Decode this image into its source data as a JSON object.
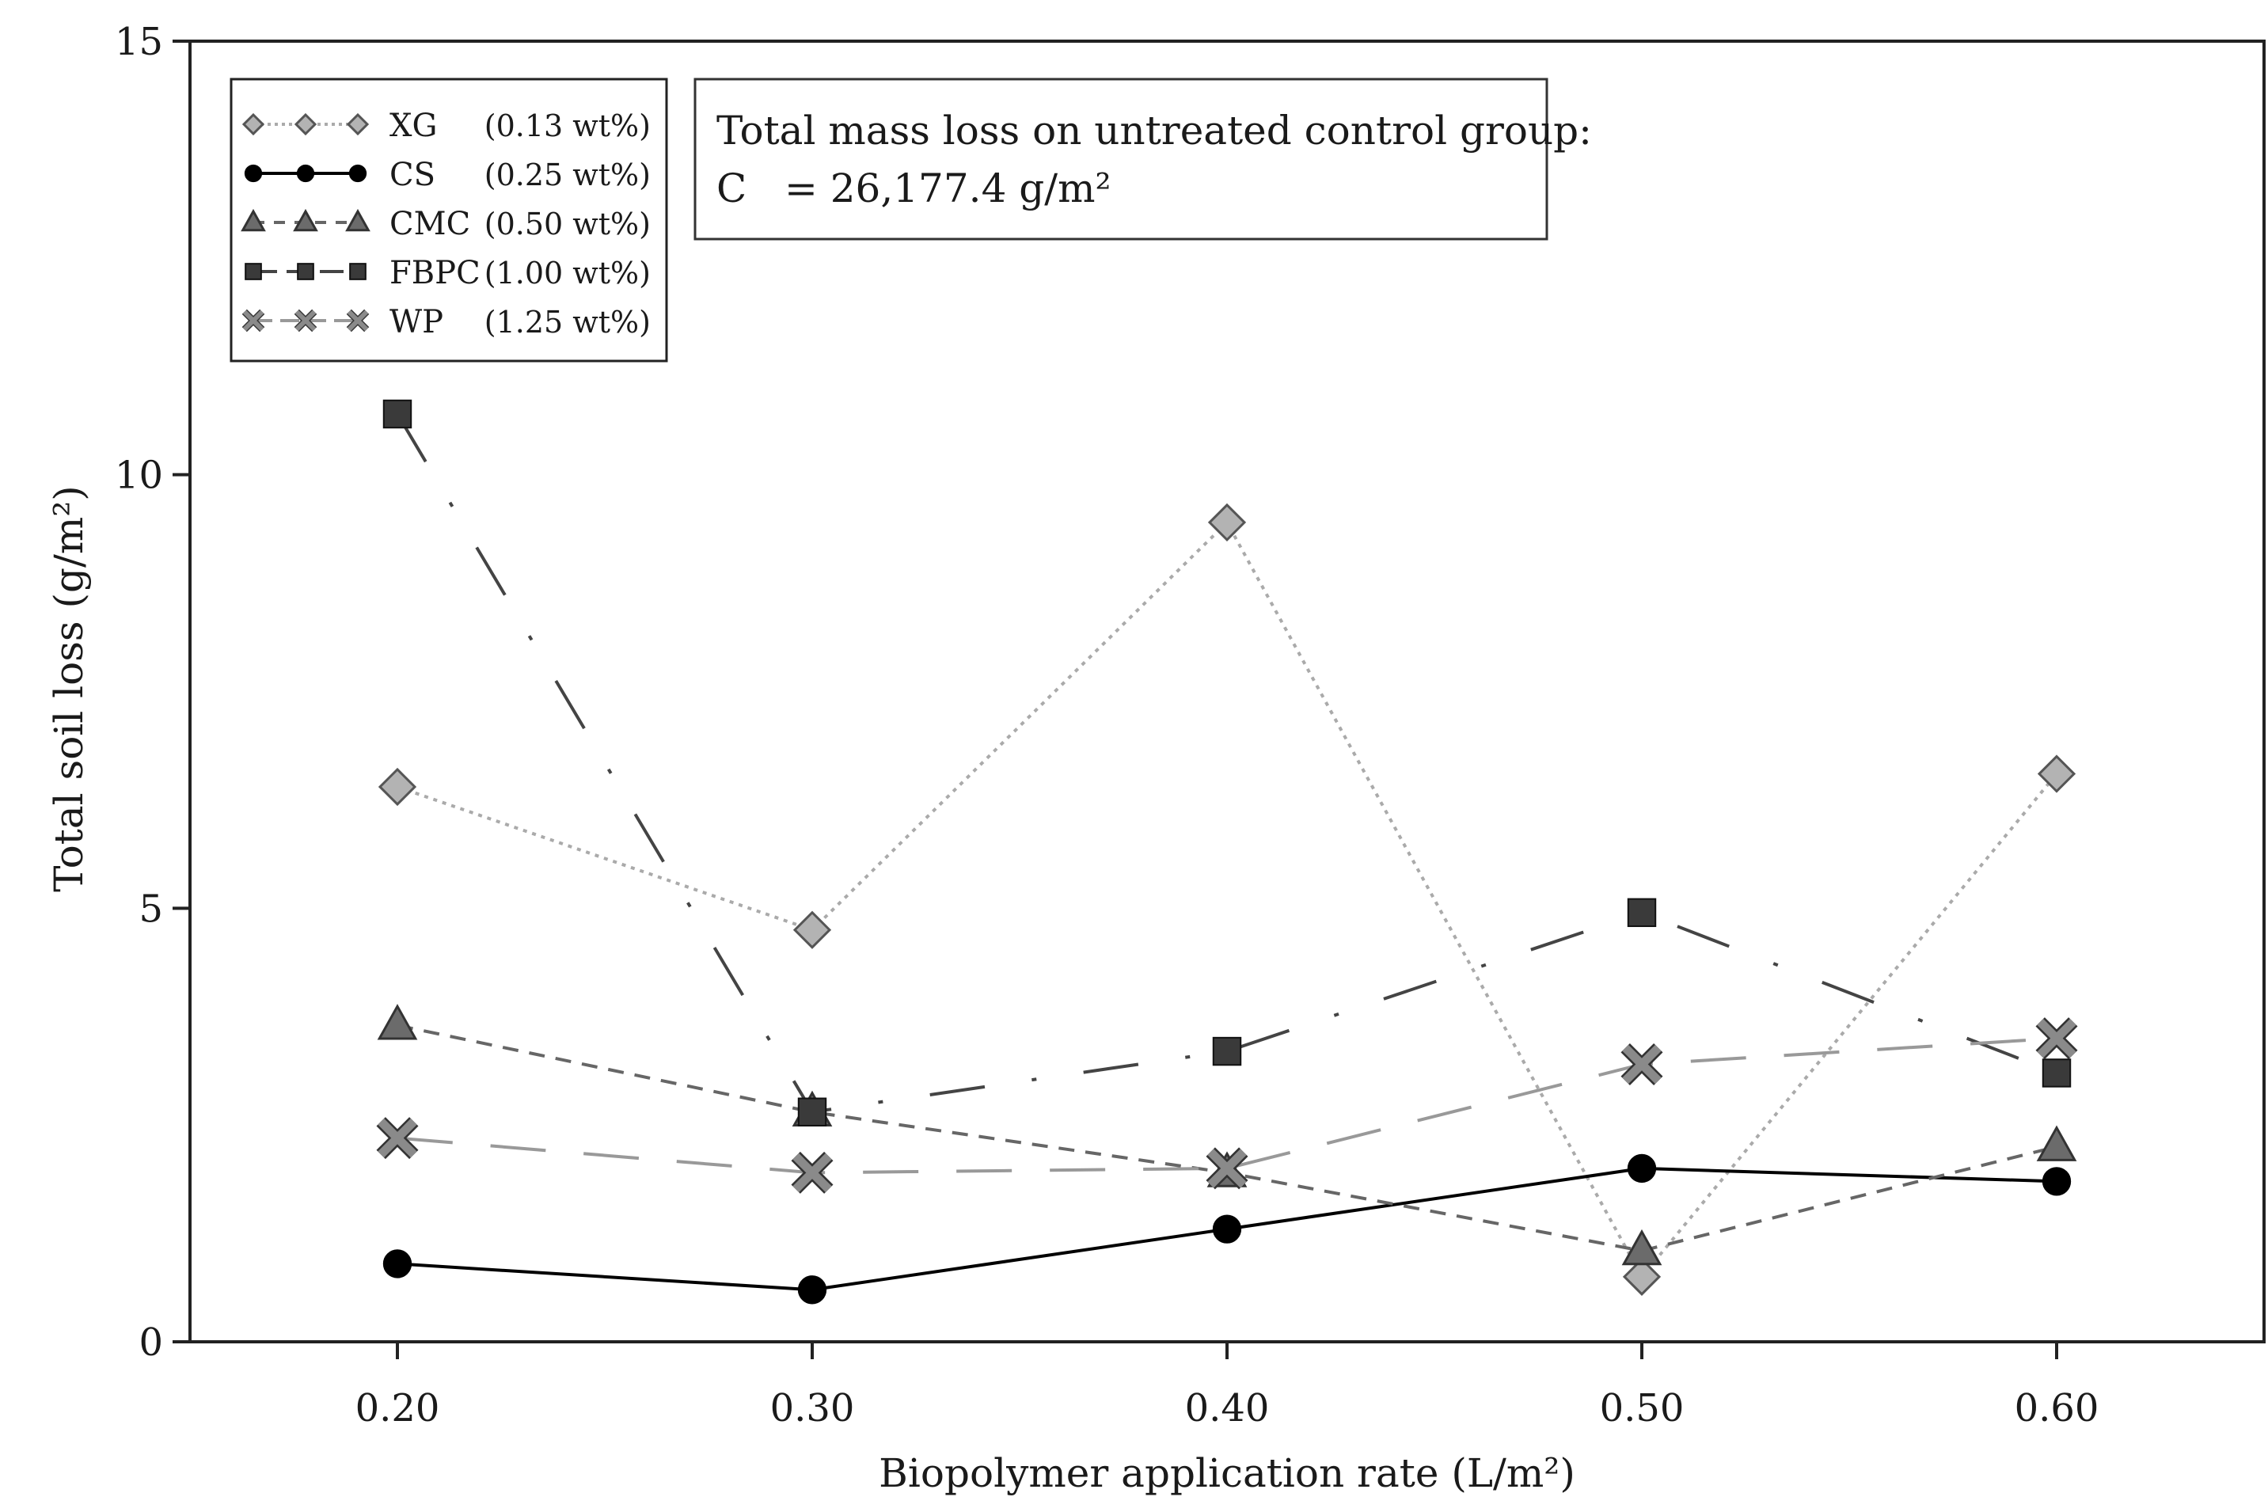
{
  "chart_data": {
    "type": "line",
    "xlabel": "Biopolymer application rate (L/m²)",
    "ylabel": "Total soil loss (g/m²)",
    "xlim": [
      0.15,
      0.65
    ],
    "ylim": [
      0,
      15
    ],
    "x": [
      0.2,
      0.3,
      0.4,
      0.5,
      0.6
    ],
    "x_tick_labels": [
      "0.20",
      "0.30",
      "0.40",
      "0.50",
      "0.60"
    ],
    "y_ticks": [
      0,
      5,
      10,
      15
    ],
    "y_tick_labels": [
      "0",
      "5",
      "10",
      "15"
    ],
    "series": [
      {
        "name": "XG",
        "conc": "(0.13 wt%)",
        "marker": "diamond",
        "line": "dotted",
        "color": "#aaaaaa",
        "marker_fill": "#b3b3b3",
        "values": [
          6.4,
          4.75,
          9.45,
          0.75,
          6.55
        ]
      },
      {
        "name": "CS",
        "conc": "(0.25 wt%)",
        "marker": "circle",
        "line": "solid",
        "color": "#000000",
        "marker_fill": "#000000",
        "values": [
          0.9,
          0.6,
          1.3,
          2.0,
          1.85
        ]
      },
      {
        "name": "CMC",
        "conc": "(0.50 wt%)",
        "marker": "triangle",
        "line": "short-dash",
        "color": "#666666",
        "marker_fill": "#6b6b6b",
        "values": [
          3.65,
          2.65,
          1.95,
          1.05,
          2.25
        ]
      },
      {
        "name": "FBPC",
        "conc": "(1.00 wt%)",
        "marker": "square",
        "line": "dash-dot",
        "color": "#444444",
        "marker_fill": "#3a3a3a",
        "values": [
          10.7,
          2.65,
          3.35,
          4.95,
          3.1
        ]
      },
      {
        "name": "WP",
        "conc": "(1.25 wt%)",
        "marker": "x",
        "line": "long-dash",
        "color": "#999999",
        "marker_fill": "#8a8a8a",
        "values": [
          2.35,
          1.95,
          2.0,
          3.2,
          3.5
        ]
      }
    ],
    "legend_position": "top-left",
    "annotation": {
      "line1": "Total mass loss on untreated control group:",
      "line2": "C   = 26,177.4 g/m²"
    }
  }
}
